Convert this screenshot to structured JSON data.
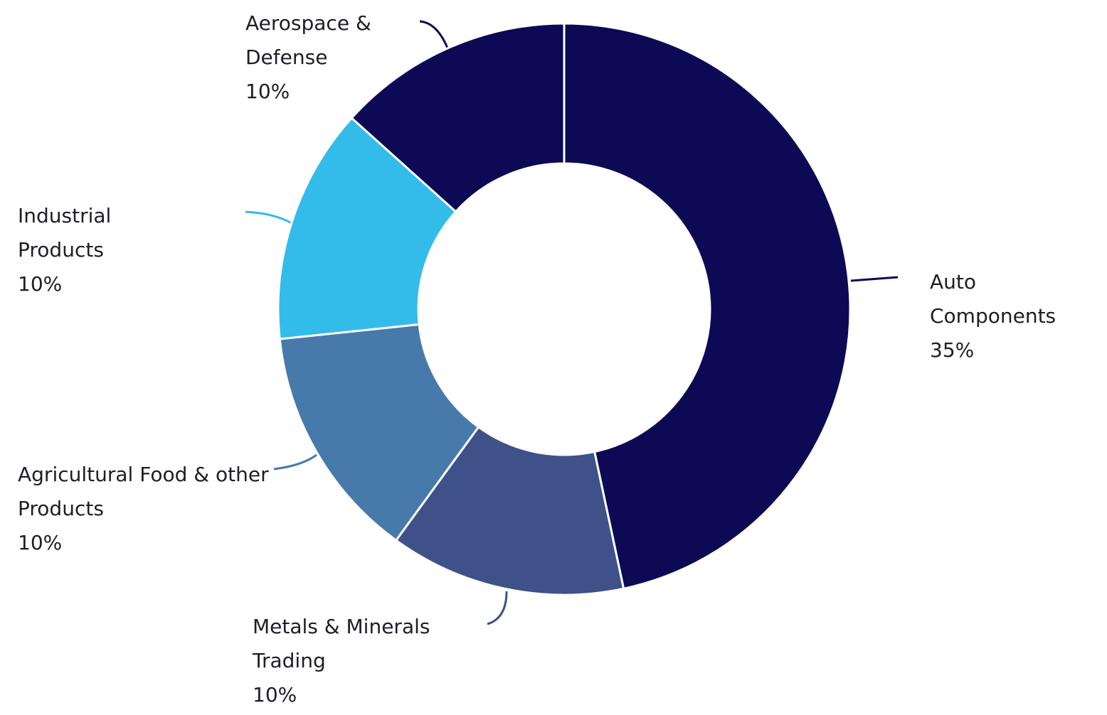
{
  "chart_data": {
    "type": "donut",
    "categories": [
      "Auto Components",
      "Metals & Minerals Trading",
      "Agricultural Food & other Products",
      "Industrial Products",
      "Aerospace & Defense"
    ],
    "values": [
      35,
      10,
      10,
      10,
      10
    ],
    "value_labels": [
      "35%",
      "10%",
      "10%",
      "10%",
      "10%"
    ],
    "colors": [
      "#0d0a55",
      "#3e5189",
      "#477aab",
      "#33bce9",
      "#0d0a55"
    ]
  }
}
